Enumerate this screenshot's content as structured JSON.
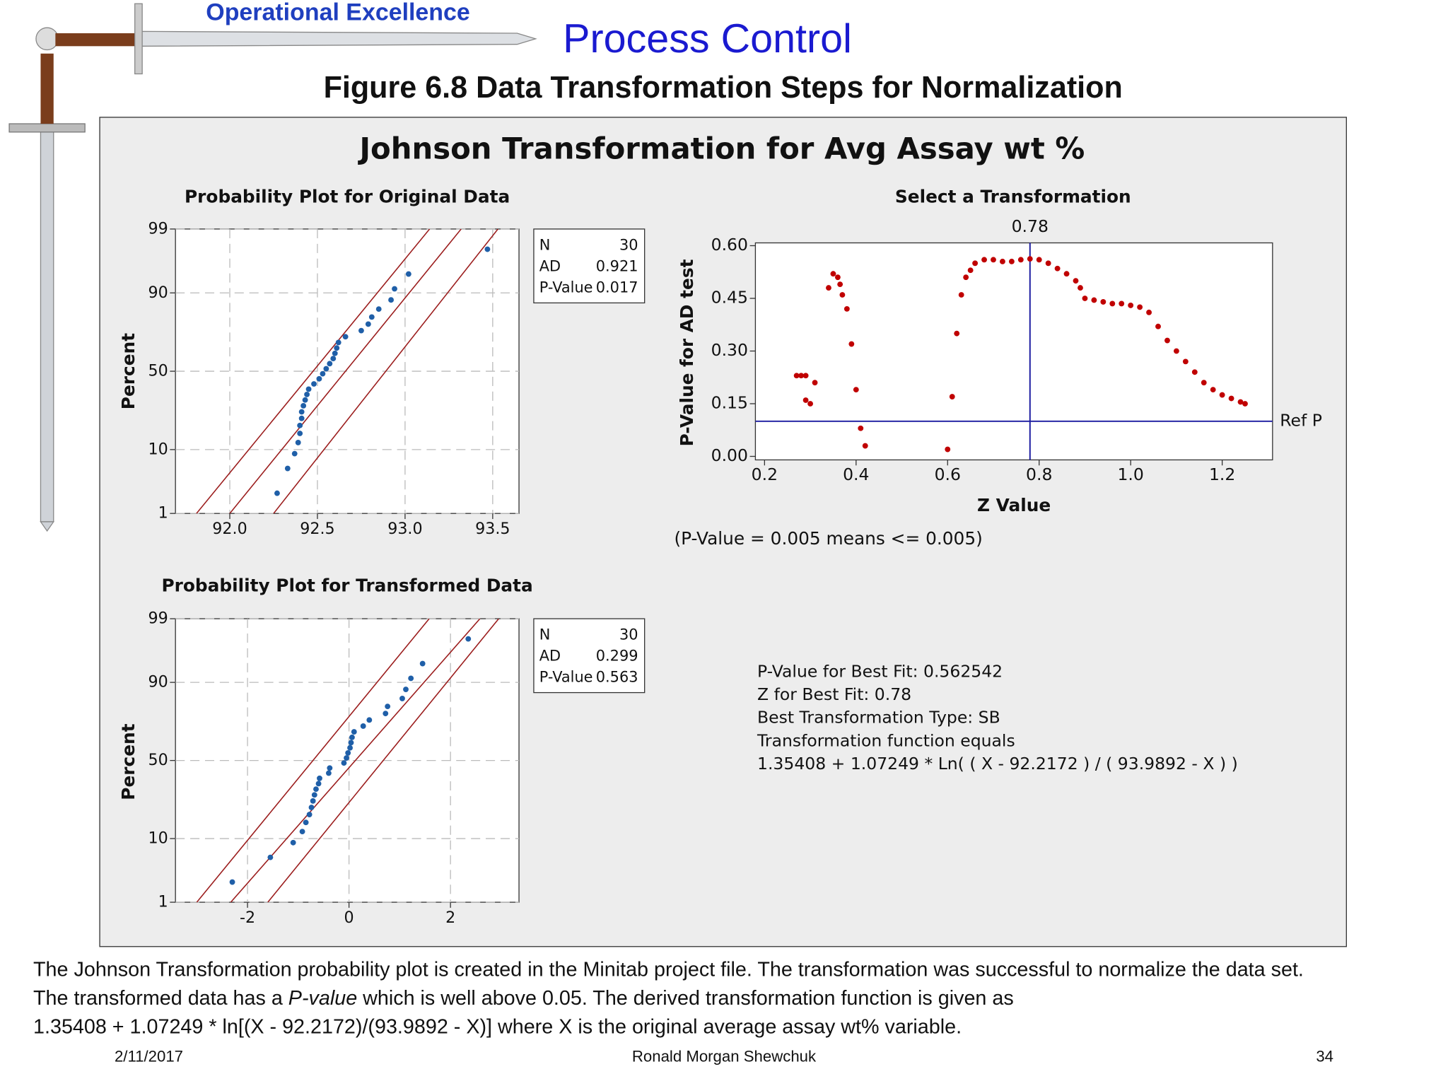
{
  "header": {
    "brand": "Operational Excellence",
    "title": "Process Control",
    "figure_title": "Figure 6.8  Data Transformation Steps for Normalization"
  },
  "panel_title": "Johnson Transformation for Avg Assay wt %",
  "chart_data": [
    {
      "type": "scatter",
      "yscale": "probability",
      "title": "Probability Plot for Original Data",
      "y_label": "Percent",
      "color": "#1f5fa8",
      "line_color": "#9b1c1c",
      "x": [
        92.27,
        92.33,
        92.37,
        92.39,
        92.4,
        92.4,
        92.41,
        92.41,
        92.42,
        92.43,
        92.44,
        92.45,
        92.48,
        92.51,
        92.53,
        92.55,
        92.57,
        92.59,
        92.6,
        92.61,
        92.62,
        92.66,
        92.75,
        92.79,
        92.81,
        92.85,
        92.92,
        92.94,
        93.02,
        93.47
      ],
      "values": [
        2.3,
        5.59,
        8.88,
        12.17,
        15.46,
        18.75,
        22.04,
        25.33,
        28.62,
        31.91,
        35.2,
        38.49,
        41.78,
        45.07,
        48.36,
        51.64,
        54.93,
        58.22,
        61.51,
        64.8,
        68.09,
        71.38,
        74.67,
        77.96,
        81.25,
        84.54,
        87.83,
        91.12,
        94.41,
        97.7
      ],
      "xlim": [
        91.69,
        93.65
      ],
      "ylim": [
        1,
        99
      ],
      "xticks": [
        {
          "value": 92,
          "label": "92.0"
        },
        92.5,
        {
          "value": 93,
          "label": "93.0"
        },
        93.5
      ],
      "yticks": [
        1,
        10,
        50,
        90,
        99
      ],
      "lines": [
        {
          "x": [
            91.81,
            93.14
          ],
          "y": [
            1,
            99
          ]
        },
        {
          "x": [
            92.0,
            93.32
          ],
          "y": [
            1,
            99
          ]
        },
        {
          "x": [
            92.25,
            93.53
          ],
          "y": [
            1,
            99
          ]
        }
      ],
      "stats": {
        "labels": [
          "N",
          "AD",
          "P-Value"
        ],
        "values": [
          30,
          0.921,
          0.017
        ]
      }
    },
    {
      "type": "scatter",
      "yscale": "probability",
      "title": "Probability Plot for Transformed Data",
      "y_label": "Percent",
      "color": "#1f5fa8",
      "line_color": "#9b1c1c",
      "x": [
        -2.3,
        -1.55,
        -1.1,
        -0.92,
        -0.85,
        -0.78,
        -0.74,
        -0.71,
        -0.68,
        -0.65,
        -0.6,
        -0.58,
        -0.4,
        -0.38,
        -0.1,
        -0.05,
        -0.02,
        0.02,
        0.04,
        0.06,
        0.1,
        0.28,
        0.4,
        0.72,
        0.76,
        1.05,
        1.12,
        1.22,
        1.45,
        2.35
      ],
      "values": [
        2.3,
        5.59,
        8.88,
        12.17,
        15.46,
        18.75,
        22.04,
        25.33,
        28.62,
        31.91,
        35.2,
        38.49,
        41.78,
        45.07,
        48.36,
        51.64,
        54.93,
        58.22,
        61.51,
        64.8,
        68.09,
        71.38,
        74.67,
        77.96,
        81.25,
        84.54,
        87.83,
        91.12,
        94.41,
        97.7
      ],
      "xlim": [
        -3.42,
        3.35
      ],
      "ylim": [
        1,
        99
      ],
      "xticks": [
        -2,
        0,
        2
      ],
      "yticks": [
        1,
        10,
        50,
        90,
        99
      ],
      "lines": [
        {
          "x": [
            -3.0,
            1.58
          ],
          "y": [
            1,
            99
          ]
        },
        {
          "x": [
            -2.33,
            2.58
          ],
          "y": [
            1,
            99
          ]
        },
        {
          "x": [
            -1.6,
            2.95
          ],
          "y": [
            1,
            99
          ]
        }
      ],
      "stats": {
        "labels": [
          "N",
          "AD",
          "P-Value"
        ],
        "values": [
          30,
          0.299,
          0.563
        ]
      }
    },
    {
      "type": "scatter",
      "title": "Select a Transformation",
      "x_label": "Z Value",
      "y_label": "P-Value for AD test",
      "color": "#c00000",
      "line_color": "#1a1aa0",
      "x": [
        0.27,
        0.28,
        0.29,
        0.29,
        0.3,
        0.31,
        0.34,
        0.35,
        0.36,
        0.365,
        0.37,
        0.38,
        0.39,
        0.4,
        0.41,
        0.42,
        0.6,
        0.61,
        0.62,
        0.63,
        0.64,
        0.65,
        0.66,
        0.68,
        0.7,
        0.72,
        0.74,
        0.76,
        0.78,
        0.8,
        0.82,
        0.84,
        0.86,
        0.88,
        0.89,
        0.9,
        0.92,
        0.94,
        0.96,
        0.98,
        1.0,
        1.02,
        1.04,
        1.06,
        1.08,
        1.1,
        1.12,
        1.14,
        1.16,
        1.18,
        1.2,
        1.22,
        1.24,
        1.25
      ],
      "values": [
        0.23,
        0.23,
        0.23,
        0.16,
        0.15,
        0.21,
        0.48,
        0.52,
        0.51,
        0.49,
        0.46,
        0.42,
        0.32,
        0.19,
        0.08,
        0.03,
        0.02,
        0.17,
        0.35,
        0.46,
        0.51,
        0.53,
        0.55,
        0.56,
        0.56,
        0.555,
        0.555,
        0.56,
        0.5625,
        0.56,
        0.55,
        0.535,
        0.52,
        0.5,
        0.48,
        0.45,
        0.445,
        0.44,
        0.435,
        0.435,
        0.43,
        0.425,
        0.41,
        0.37,
        0.33,
        0.3,
        0.27,
        0.24,
        0.21,
        0.19,
        0.175,
        0.165,
        0.155,
        0.15
      ],
      "xlim": [
        0.18,
        1.31
      ],
      "ylim": [
        -0.01,
        0.608
      ],
      "xticks": [
        0.2,
        0.4,
        0.6,
        0.8,
        {
          "value": 1,
          "label": "1.0"
        },
        1.2
      ],
      "yticks": [
        {
          "value": 0,
          "label": "0.00"
        },
        {
          "value": 0.15,
          "label": "0.15"
        },
        {
          "value": 0.3,
          "label": "0.30"
        },
        {
          "value": 0.45,
          "label": "0.45"
        },
        {
          "value": 0.6,
          "label": "0.60"
        }
      ],
      "ref_line": {
        "value": 0.1,
        "label": "Ref P"
      },
      "best_z": 0.78,
      "note": "(P-Value = 0.005 means <= 0.005)"
    }
  ],
  "fit_summary": [
    "P-Value for Best Fit: 0.562542",
    "Z for Best Fit: 0.78",
    "Best Transformation Type: SB",
    "Transformation function equals",
    "1.35408 + 1.07249 * Ln( ( X - 92.2172 ) / ( 93.9892 - X ) )"
  ],
  "footer": {
    "line1": "The Johnson Transformation probability plot is created in the Minitab project file.  The transformation was successful to normalize the data set.",
    "line2": [
      "The transformed data has a ",
      "P-value",
      " which is well above 0.05.  The derived transformation function is given as"
    ],
    "line3": "1.35408 + 1.07249 * ln[(X - 92.2172)/(93.9892 - X)] where X is the original average assay wt% variable.",
    "date": "2/11/2017",
    "author": "Ronald Morgan Shewchuk",
    "page": "34"
  }
}
